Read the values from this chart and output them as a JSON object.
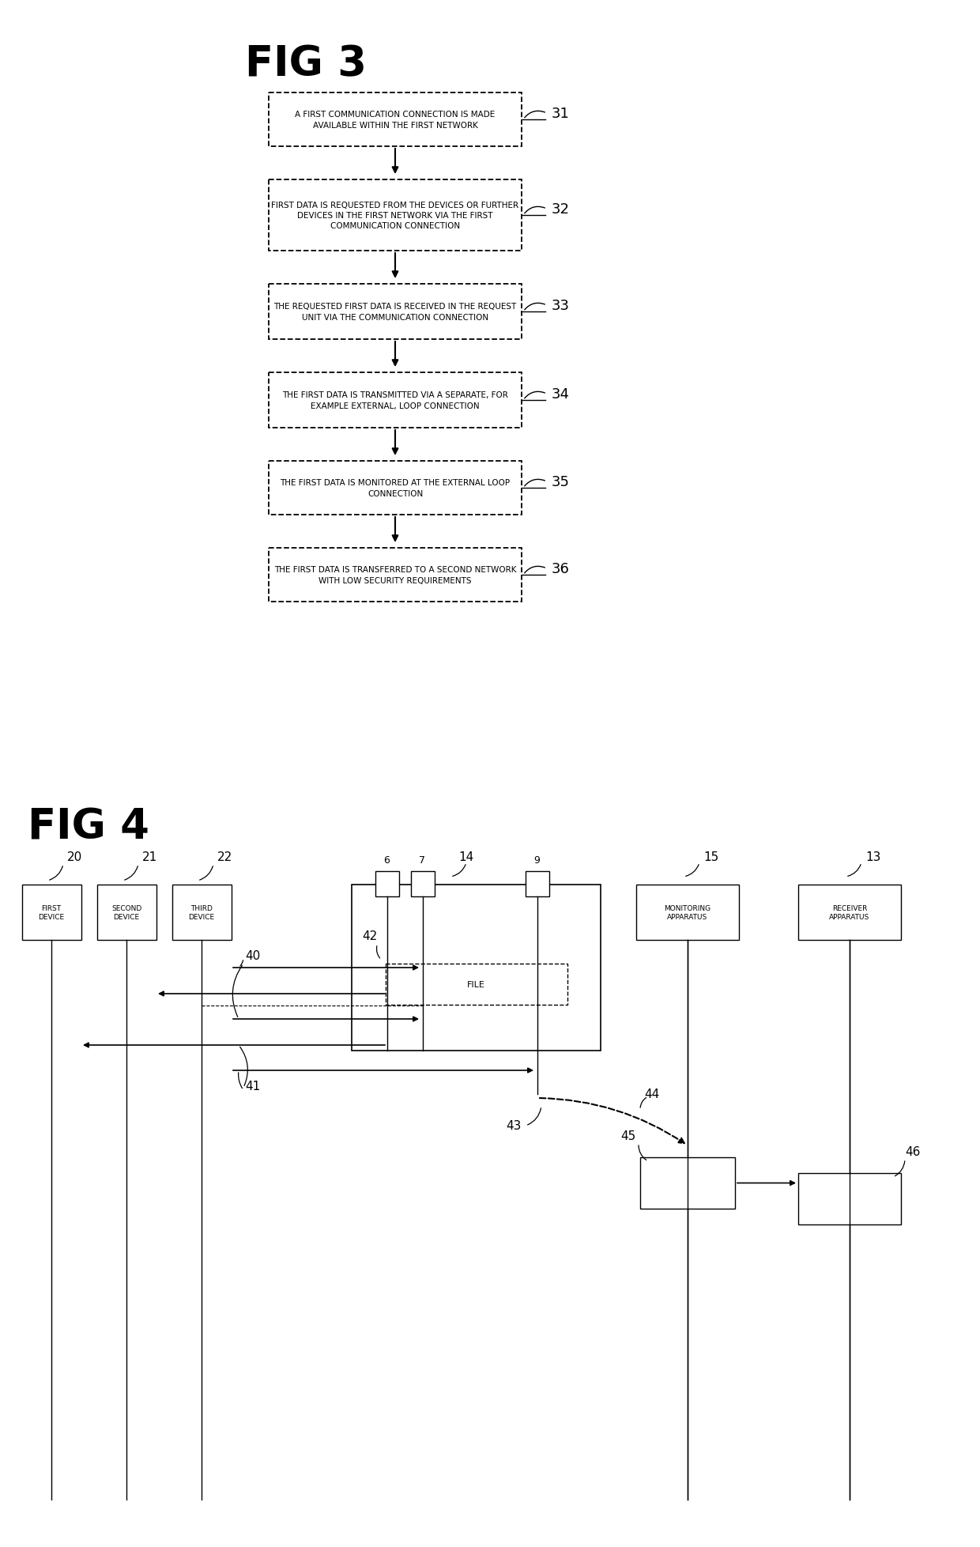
{
  "fig3_title": "FIG 3",
  "fig4_title": "FIG 4",
  "fig3_boxes": [
    {
      "id": 31,
      "text": "A FIRST COMMUNICATION CONNECTION IS MADE\nAVAILABLE WITHIN THE FIRST NETWORK"
    },
    {
      "id": 32,
      "text": "FIRST DATA IS REQUESTED FROM THE DEVICES OR FURTHER\nDEVICES IN THE FIRST NETWORK VIA THE FIRST\nCOMMUNICATION CONNECTION"
    },
    {
      "id": 33,
      "text": "THE REQUESTED FIRST DATA IS RECEIVED IN THE REQUEST\nUNIT VIA THE COMMUNICATION CONNECTION"
    },
    {
      "id": 34,
      "text": "THE FIRST DATA IS TRANSMITTED VIA A SEPARATE, FOR\nEXAMPLE EXTERNAL, LOOP CONNECTION"
    },
    {
      "id": 35,
      "text": "THE FIRST DATA IS MONITORED AT THE EXTERNAL LOOP\nCONNECTION"
    },
    {
      "id": 36,
      "text": "THE FIRST DATA IS TRANSFERRED TO A SECOND NETWORK\nWITH LOW SECURITY REQUIREMENTS"
    }
  ],
  "background_color": "#ffffff"
}
